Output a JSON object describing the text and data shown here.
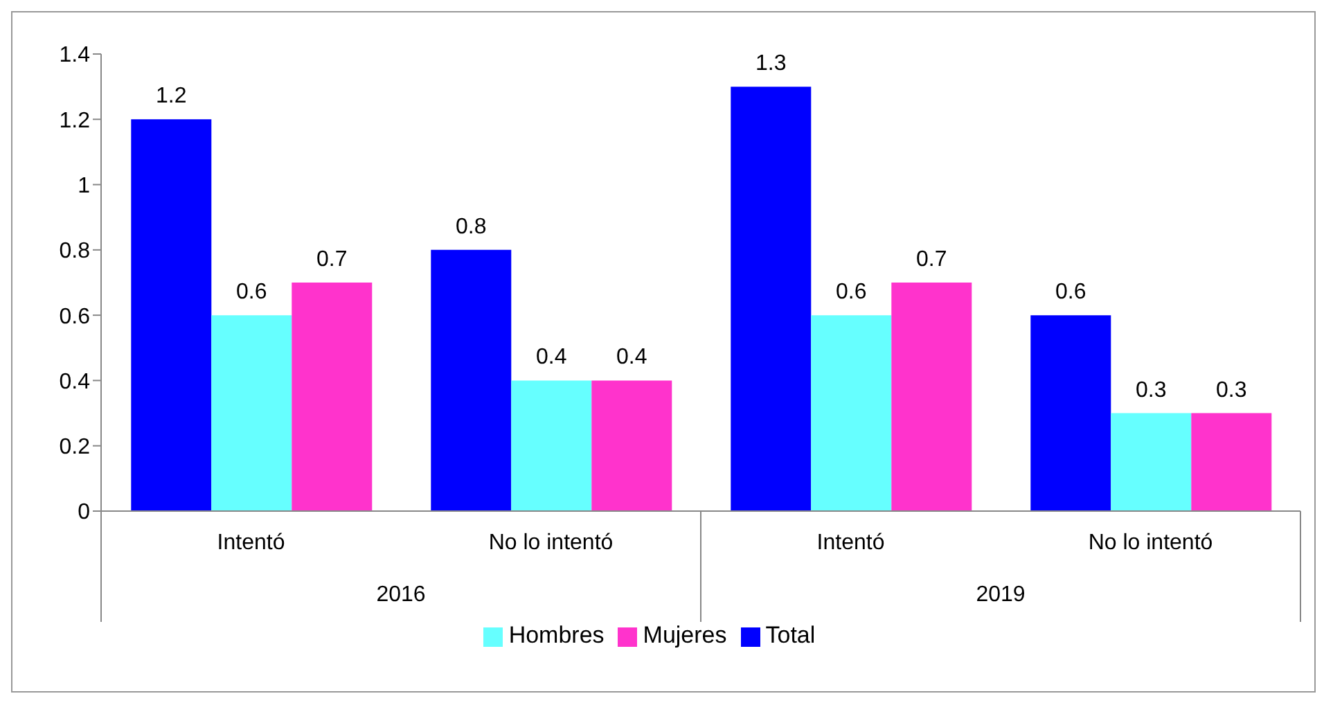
{
  "chart_data": {
    "type": "bar",
    "categories": [
      "Intentó",
      "No lo intentó",
      "Intentó",
      "No lo intentó"
    ],
    "series": [
      {
        "name": "Total",
        "color": "#0000ff",
        "values": [
          1.2,
          0.8,
          1.3,
          0.6
        ]
      },
      {
        "name": "Hombres",
        "color": "#66ffff",
        "values": [
          0.6,
          0.4,
          0.6,
          0.3
        ]
      },
      {
        "name": "Mujeres",
        "color": "#ff33cc",
        "values": [
          0.7,
          0.4,
          0.7,
          0.3
        ]
      }
    ],
    "annotations": [
      "2016",
      "2019"
    ],
    "ylim": [
      0,
      1.4
    ],
    "yticks": [
      0,
      0.2,
      0.4,
      0.6,
      0.8,
      1,
      1.2,
      1.4
    ],
    "grid": false,
    "legend": "bottom",
    "data_labels": true
  }
}
